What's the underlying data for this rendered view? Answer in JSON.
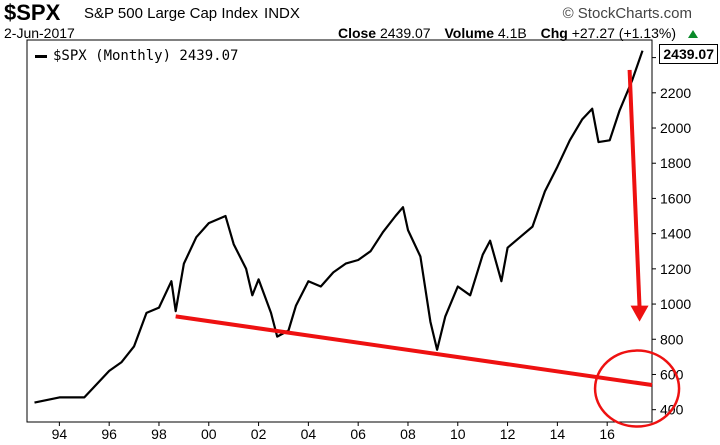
{
  "header": {
    "symbol": "$SPX",
    "name": "S&P 500 Large Cap Index",
    "exchange": "INDX",
    "brand": "© StockCharts.com",
    "date": "2-Jun-2017",
    "close_label": "Close",
    "close_value": "2439.07",
    "volume_label": "Volume",
    "volume_value": "4.1B",
    "chg_label": "Chg",
    "chg_value": "+27.27 (+1.13%)",
    "last_price_badge": "2439.07"
  },
  "legend": {
    "label": "$SPX (Monthly) 2439.07"
  },
  "colors": {
    "price_line": "#000000",
    "annotation": "#ee1111",
    "up": "#0a8a2a"
  },
  "chart_data": {
    "type": "line",
    "title": "",
    "xlabel": "",
    "ylabel": "",
    "xlim": [
      1992.7,
      2017.8
    ],
    "ylim": [
      330,
      2500
    ],
    "x_tick_labels": [
      "94",
      "96",
      "98",
      "00",
      "02",
      "04",
      "06",
      "08",
      "10",
      "12",
      "14",
      "16"
    ],
    "x_tick_years": [
      1994,
      1996,
      1998,
      2000,
      2002,
      2004,
      2006,
      2008,
      2010,
      2012,
      2014,
      2016
    ],
    "y_ticks": [
      400,
      600,
      800,
      1000,
      1200,
      1400,
      1600,
      1800,
      2000,
      2200,
      2400
    ],
    "series": [
      {
        "name": "$SPX (Monthly)",
        "x": [
          1993.0,
          1994.0,
          1995.0,
          1996.0,
          1996.5,
          1997.0,
          1997.5,
          1998.0,
          1998.5,
          1998.67,
          1999.0,
          1999.5,
          2000.0,
          2000.67,
          2001.0,
          2001.5,
          2001.75,
          2002.0,
          2002.5,
          2002.75,
          2003.2,
          2003.5,
          2004.0,
          2004.5,
          2005.0,
          2005.5,
          2006.0,
          2006.5,
          2007.0,
          2007.5,
          2007.8,
          2008.0,
          2008.5,
          2008.9,
          2009.17,
          2009.5,
          2010.0,
          2010.5,
          2011.0,
          2011.3,
          2011.75,
          2012.0,
          2012.5,
          2013.0,
          2013.5,
          2014.0,
          2014.5,
          2015.0,
          2015.4,
          2015.65,
          2016.1,
          2016.5,
          2017.0,
          2017.42
        ],
        "y": [
          440,
          470,
          470,
          620,
          670,
          760,
          950,
          980,
          1130,
          960,
          1230,
          1380,
          1460,
          1500,
          1340,
          1200,
          1050,
          1140,
          950,
          815,
          850,
          990,
          1130,
          1100,
          1180,
          1230,
          1250,
          1300,
          1410,
          1500,
          1550,
          1420,
          1270,
          900,
          740,
          930,
          1100,
          1050,
          1280,
          1360,
          1130,
          1320,
          1380,
          1440,
          1640,
          1780,
          1930,
          2050,
          2110,
          1920,
          1930,
          2100,
          2270,
          2439.07
        ]
      }
    ],
    "annotations": [
      {
        "type": "trendline",
        "from": [
          1998.67,
          930
        ],
        "to": [
          2017.8,
          540
        ]
      },
      {
        "type": "arrow",
        "from": [
          2016.9,
          2330
        ],
        "to": [
          2017.3,
          900
        ]
      },
      {
        "type": "circle",
        "center": [
          2017.2,
          520
        ]
      }
    ]
  }
}
